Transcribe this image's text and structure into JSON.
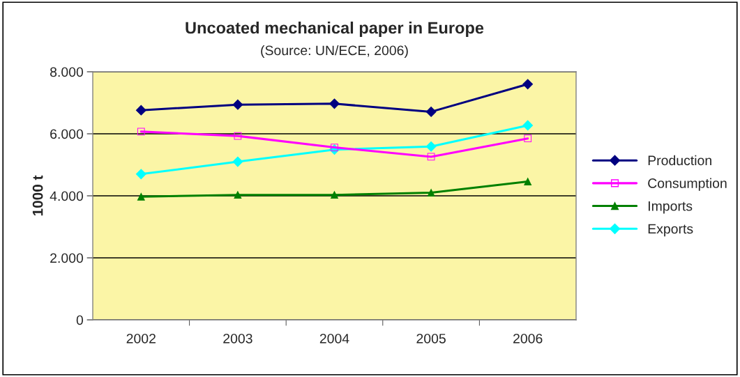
{
  "chart_data": {
    "type": "line",
    "title": "Uncoated mechanical paper in Europe",
    "subtitle": "(Source: UN/ECE, 2006)",
    "ylabel": "1000 t",
    "categories": [
      "2002",
      "2003",
      "2004",
      "2005",
      "2006"
    ],
    "series": [
      {
        "name": "Production",
        "color": "#000080",
        "marker": "diamond",
        "values": [
          6760,
          6940,
          6970,
          6710,
          7600
        ]
      },
      {
        "name": "Consumption",
        "color": "#ff00ff",
        "marker": "square",
        "values": [
          6070,
          5930,
          5560,
          5260,
          5850
        ]
      },
      {
        "name": "Imports",
        "color": "#008000",
        "marker": "triangle",
        "values": [
          3970,
          4030,
          4030,
          4100,
          4460
        ]
      },
      {
        "name": "Exports",
        "color": "#00ffff",
        "marker": "diamond",
        "values": [
          4700,
          5100,
          5490,
          5590,
          6270
        ]
      }
    ],
    "ylim": [
      0,
      8000
    ],
    "yticks": [
      {
        "value": 0,
        "label": "0"
      },
      {
        "value": 2000,
        "label": "2.000"
      },
      {
        "value": 4000,
        "label": "4.000"
      },
      {
        "value": 6000,
        "label": "6.000"
      },
      {
        "value": 8000,
        "label": "8.000"
      }
    ],
    "grid": "y",
    "legend": "right"
  }
}
